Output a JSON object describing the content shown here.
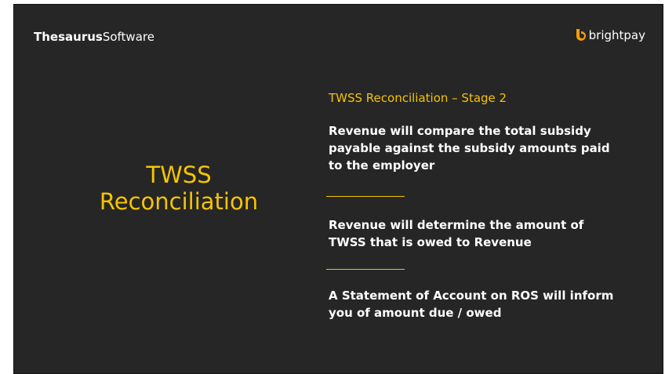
{
  "header": {
    "brand_bold": "Thesaurus",
    "brand_light": "Software",
    "logo_text": "brightpay"
  },
  "slide": {
    "title_line1": "TWSS",
    "title_line2": "Reconciliation",
    "heading": "TWSS Reconciliation – Stage 2",
    "points": [
      "Revenue will compare the total subsidy payable against the subsidy amounts paid to the employer",
      "Revenue will determine the amount of TWSS that is owed to Revenue",
      "A Statement of Account on ROS will inform you of amount due / owed"
    ]
  }
}
